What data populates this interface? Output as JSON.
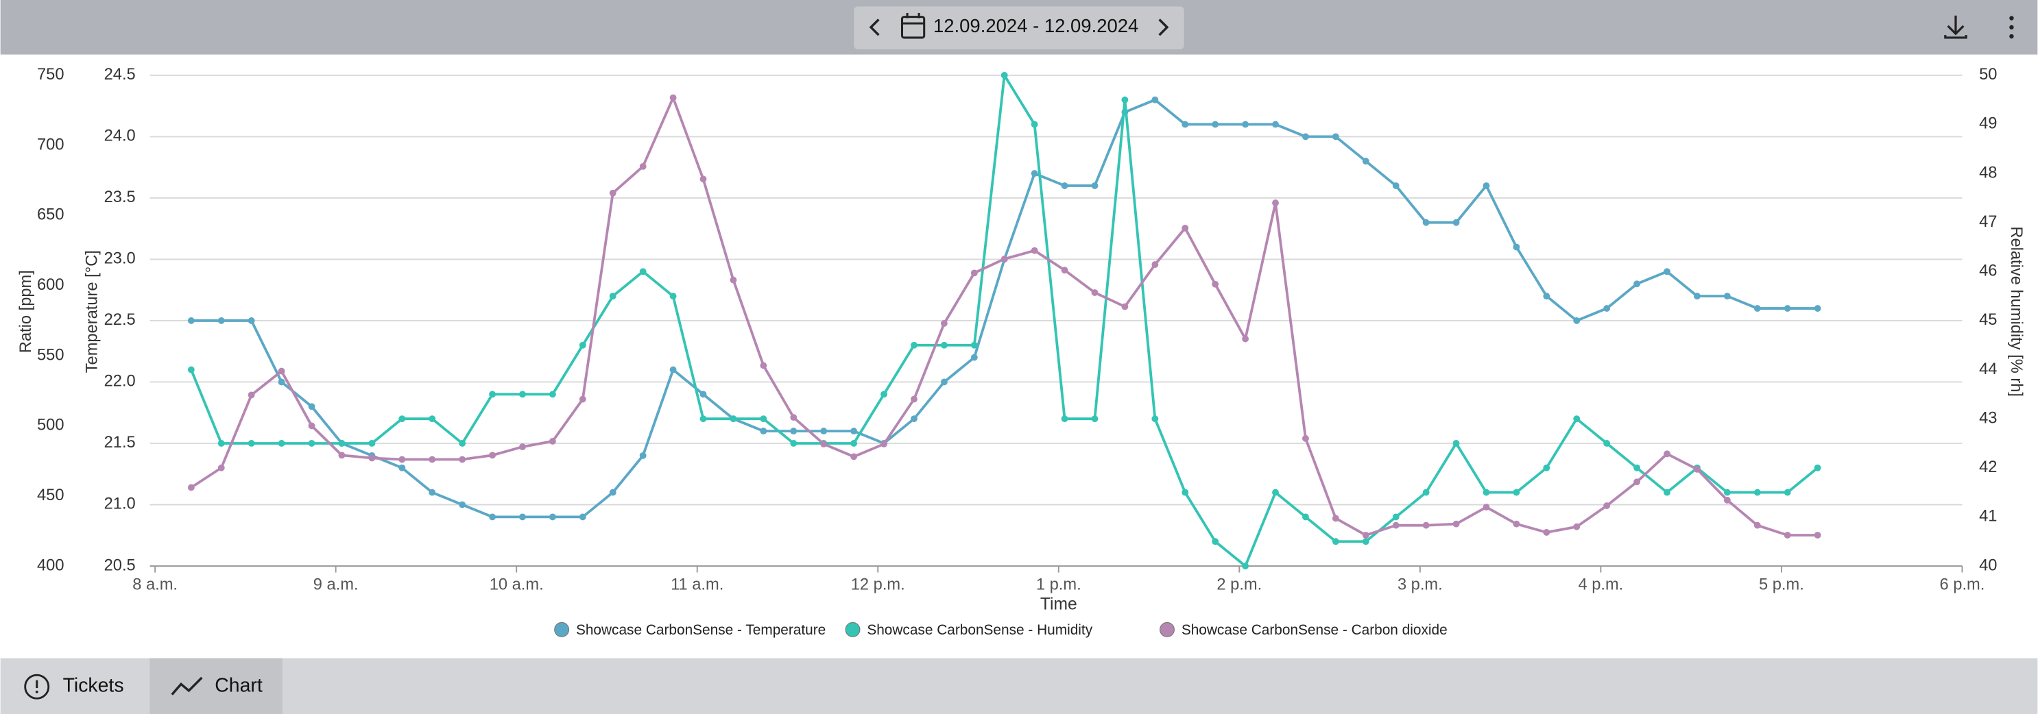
{
  "header": {
    "date_range": "12.09.2024 - 12.09.2024"
  },
  "tabs": [
    "Tickets",
    "Chart"
  ],
  "chart_data": {
    "type": "line",
    "x_label": "Time",
    "y_label": "Ratio [ppm]",
    "y2_label": "Temperature [°C]",
    "y3_label": "Relative humidity [% rh]",
    "x": [
      492,
      502,
      512,
      522,
      532,
      542,
      552,
      562,
      572,
      582,
      592,
      602,
      612,
      622,
      632,
      642,
      652,
      662,
      672,
      682,
      692,
      702,
      712,
      722,
      732,
      742,
      752,
      762,
      772,
      782,
      792,
      802,
      812,
      822,
      832,
      842,
      852,
      862,
      872,
      882,
      892,
      902,
      912,
      922,
      932,
      942,
      952,
      962,
      972,
      982,
      992,
      1002,
      1012,
      1022,
      1032
    ],
    "xlim": [
      480,
      1080
    ],
    "xticks": [
      {
        "value": 480,
        "label": "8 a.m."
      },
      {
        "value": 540,
        "label": "9 a.m."
      },
      {
        "value": 600,
        "label": "10 a.m."
      },
      {
        "value": 660,
        "label": "11 a.m."
      },
      {
        "value": 720,
        "label": "12 p.m."
      },
      {
        "value": 780,
        "label": "1 p.m."
      },
      {
        "value": 840,
        "label": "2 p.m."
      },
      {
        "value": 900,
        "label": "3 p.m."
      },
      {
        "value": 960,
        "label": "4 p.m."
      },
      {
        "value": 1020,
        "label": "5 p.m."
      },
      {
        "value": 1080,
        "label": "6 p.m."
      }
    ],
    "ylim": [
      400,
      750
    ],
    "yticks": [
      400,
      450,
      500,
      550,
      600,
      650,
      700,
      750
    ],
    "y2lim": [
      20.5,
      24.5
    ],
    "y2ticks": [
      20.5,
      {
        "value": 21,
        "label": "21.0"
      },
      21.5,
      {
        "value": 22,
        "label": "22.0"
      },
      22.5,
      {
        "value": 23,
        "label": "23.0"
      },
      23.5,
      {
        "value": 24,
        "label": "24.0"
      },
      24.5
    ],
    "y3lim": [
      40,
      50
    ],
    "y3ticks": [
      40,
      41,
      42,
      43,
      44,
      45,
      46,
      47,
      48,
      49,
      50
    ],
    "grid": true,
    "series": [
      {
        "name": "Showcase CarbonSense - Temperature",
        "color": "#5aa8c6",
        "axis": "y2",
        "values": [
          22.5,
          22.5,
          22.5,
          22.0,
          21.8,
          21.5,
          21.4,
          21.3,
          21.1,
          21.0,
          20.9,
          20.9,
          20.9,
          20.9,
          21.1,
          21.4,
          22.1,
          21.9,
          21.7,
          21.6,
          21.6,
          21.6,
          21.6,
          21.5,
          21.7,
          22.0,
          22.2,
          23.0,
          23.7,
          23.6,
          23.6,
          24.2,
          24.3,
          24.1,
          24.1,
          24.1,
          24.1,
          24.0,
          24.0,
          23.8,
          23.6,
          23.3,
          23.3,
          23.6,
          23.1,
          22.7,
          22.5,
          22.6,
          22.8,
          22.9,
          22.7,
          22.7,
          22.6,
          22.6,
          22.6
        ]
      },
      {
        "name": "Showcase CarbonSense - Humidity",
        "color": "#33c4b4",
        "axis": "y3",
        "values": [
          44.0,
          42.5,
          42.5,
          42.5,
          42.5,
          42.5,
          42.5,
          43.0,
          43.0,
          42.5,
          43.5,
          43.5,
          43.5,
          44.5,
          45.5,
          46.0,
          45.5,
          43.0,
          43.0,
          43.0,
          42.5,
          42.5,
          42.5,
          43.5,
          44.5,
          44.5,
          44.5,
          50.0,
          49.0,
          43.0,
          43.0,
          49.5,
          43.0,
          41.5,
          40.5,
          40.0,
          41.5,
          41.0,
          40.5,
          40.5,
          41.0,
          41.5,
          42.5,
          41.5,
          41.5,
          42.0,
          43.0,
          42.5,
          42.0,
          41.5,
          42.0,
          41.5,
          41.5,
          41.5,
          42.0
        ]
      },
      {
        "name": "Showcase CarbonSense - Carbon dioxide",
        "color": "#b586b2",
        "axis": "y",
        "values": [
          456,
          470,
          522,
          539,
          500,
          479,
          477,
          476,
          476,
          476,
          479,
          485,
          489,
          519,
          666,
          685,
          734,
          676,
          604,
          543,
          506,
          487,
          478,
          487,
          519,
          573,
          609,
          619,
          625,
          611,
          595,
          585,
          615,
          641,
          601,
          562,
          659,
          491,
          434,
          422,
          429,
          429,
          430,
          442,
          430,
          424,
          428,
          443,
          460,
          480,
          469,
          447,
          429,
          422,
          422
        ]
      }
    ]
  }
}
